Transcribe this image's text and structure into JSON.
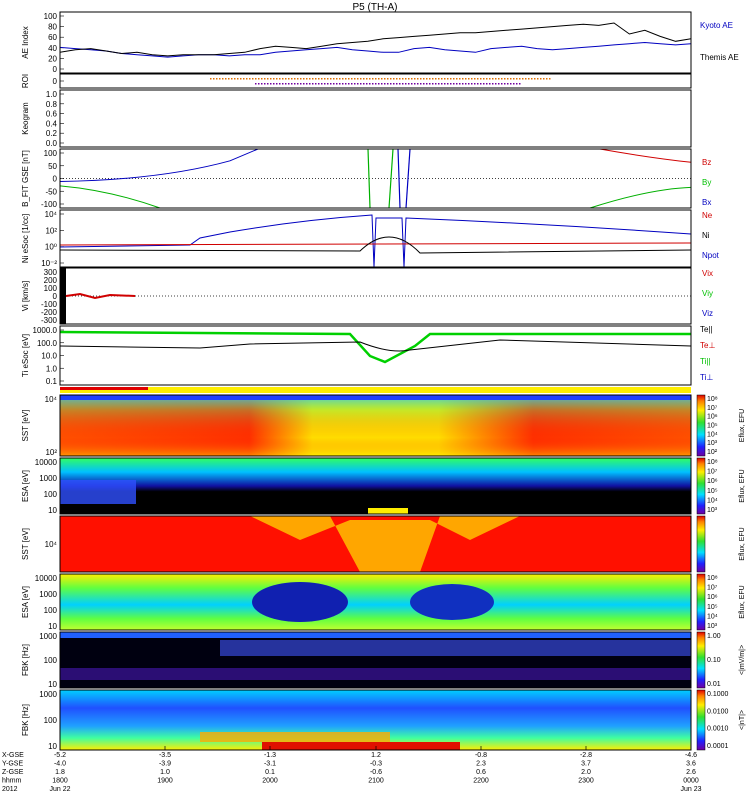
{
  "title": "P5 (TH-A)",
  "chart_data": [
    {
      "type": "line",
      "ylabel": "AE Index",
      "ylim": [
        0,
        100
      ],
      "yticks": [
        "100",
        "80",
        "60",
        "40",
        "20",
        "0"
      ],
      "series": [
        {
          "name": "Kyoto AE",
          "color": "#0000c0",
          "values": [
            42,
            40,
            38,
            36,
            32,
            30,
            28,
            26,
            28,
            30,
            30,
            28,
            30,
            30,
            34,
            36,
            38,
            40,
            42,
            38,
            36,
            34,
            34,
            40,
            42,
            38,
            36,
            34,
            40,
            42,
            44,
            40,
            38,
            40,
            42,
            44,
            46,
            48,
            50,
            48,
            46,
            48
          ]
        },
        {
          "name": "Themis AE",
          "color": "#000000",
          "values": [
            34,
            38,
            40,
            36,
            32,
            34,
            30,
            28,
            30,
            30,
            30,
            32,
            34,
            40,
            44,
            42,
            40,
            44,
            48,
            50,
            52,
            56,
            58,
            60,
            62,
            64,
            66,
            66,
            68,
            70,
            72,
            74,
            76,
            78,
            80,
            78,
            82,
            64,
            70,
            60,
            52,
            56
          ]
        }
      ]
    },
    {
      "type": "line",
      "ylabel": "ROI",
      "yticks": [
        "0"
      ]
    },
    {
      "type": "line",
      "ylabel": "Keogram",
      "ylim": [
        0,
        1.0
      ],
      "yticks": [
        "1.0",
        "0.8",
        "0.6",
        "0.4",
        "0.2",
        "0.0"
      ]
    },
    {
      "type": "line",
      "ylabel": "B_FIT GSE [nT]",
      "ylim": [
        -100,
        100
      ],
      "yticks": [
        "100",
        "50",
        "0",
        "-50",
        "-100"
      ],
      "series": [
        {
          "name": "Bz",
          "color": "#d00000"
        },
        {
          "name": "By",
          "color": "#00c000"
        },
        {
          "name": "Bx",
          "color": "#0000c0"
        }
      ]
    },
    {
      "type": "line",
      "ylabel": "Ni eSoc [1/cc]",
      "yticks": [
        "10⁴",
        "10²",
        "10⁰",
        "10⁻²"
      ],
      "series": [
        {
          "name": "Ne",
          "color": "#d00000"
        },
        {
          "name": "Ni",
          "color": "#000000"
        },
        {
          "name": "Npot",
          "color": "#0000c0"
        }
      ]
    },
    {
      "type": "line",
      "ylabel": "Vi [km/s]",
      "ylim": [
        -300,
        300
      ],
      "yticks": [
        "300",
        "200",
        "100",
        "0",
        "-100",
        "-200",
        "-300"
      ],
      "series": [
        {
          "name": "Vix",
          "color": "#d00000"
        },
        {
          "name": "Viy",
          "color": "#00c000"
        },
        {
          "name": "Viz",
          "color": "#0000c0"
        }
      ]
    },
    {
      "type": "line",
      "ylabel": "Ti eSoc [eV]",
      "yticks": [
        "1000.0",
        "100.0",
        "10.0",
        "1.0",
        "0.1"
      ],
      "series": [
        {
          "name": "Te||",
          "color": "#000000"
        },
        {
          "name": "Te⊥",
          "color": "#d00000"
        },
        {
          "name": "Ti||",
          "color": "#00c000"
        },
        {
          "name": "Ti⊥",
          "color": "#0000c0"
        }
      ]
    },
    {
      "type": "heatmap",
      "ylabel": "SST [eV]",
      "yticks": [
        "10⁴",
        "10²"
      ],
      "colorbar": {
        "label": "Eflux, EFU",
        "ticks": [
          "10⁸",
          "10⁷",
          "10⁶",
          "10⁵",
          "10⁴",
          "10³",
          "10²"
        ]
      }
    },
    {
      "type": "heatmap",
      "ylabel": "ESA [eV]",
      "yticks": [
        "10000",
        "1000",
        "100",
        "10"
      ],
      "colorbar": {
        "label": "Eflux, EFU",
        "ticks": [
          "10⁸",
          "10⁷",
          "10⁶",
          "10⁵",
          "10⁴",
          "10³"
        ]
      }
    },
    {
      "type": "heatmap",
      "ylabel": "SST [eV]",
      "yticks": [
        "10⁴"
      ],
      "colorbar": {
        "label": "Eflux, EFU"
      }
    },
    {
      "type": "heatmap",
      "ylabel": "ESA [eV]",
      "yticks": [
        "10000",
        "1000",
        "100",
        "10"
      ],
      "colorbar": {
        "label": "Eflux, EFU",
        "ticks": [
          "10⁸",
          "10⁷",
          "10⁶",
          "10⁵",
          "10⁴",
          "10³"
        ]
      }
    },
    {
      "type": "heatmap",
      "ylabel": "FBK [Hz]",
      "yticks": [
        "1000",
        "100",
        "10"
      ],
      "colorbar": {
        "label": "<|mV/m|>",
        "ticks": [
          "1.00",
          "0.10",
          "0.01"
        ]
      }
    },
    {
      "type": "heatmap",
      "ylabel": "FBK [Hz]",
      "yticks": [
        "1000",
        "100",
        "10"
      ],
      "colorbar": {
        "label": "<|nT|>",
        "ticks": [
          "0.1000",
          "0.0100",
          "0.0010",
          "0.0001"
        ]
      }
    }
  ],
  "xaxis": {
    "row_labels": [
      "X-GSE",
      "Y-GSE",
      "Z-GSE",
      "hhmm",
      "2012"
    ],
    "columns": [
      {
        "vals": [
          "-5.2",
          "-4.0",
          "1.8",
          "1800",
          "Jun 22"
        ]
      },
      {
        "vals": [
          "-3.5",
          "-3.9",
          "1.0",
          "1900",
          ""
        ]
      },
      {
        "vals": [
          "-1.3",
          "-3.1",
          "0.1",
          "2000",
          ""
        ]
      },
      {
        "vals": [
          "1.2",
          "-0.3",
          "-0.6",
          "2100",
          ""
        ]
      },
      {
        "vals": [
          "-0.8",
          "2.3",
          "0.6",
          "2200",
          ""
        ]
      },
      {
        "vals": [
          "-2.8",
          "3.7",
          "2.0",
          "2300",
          ""
        ]
      },
      {
        "vals": [
          "-4.6",
          "3.6",
          "2.6",
          "0000",
          "Jun 23"
        ]
      }
    ]
  }
}
